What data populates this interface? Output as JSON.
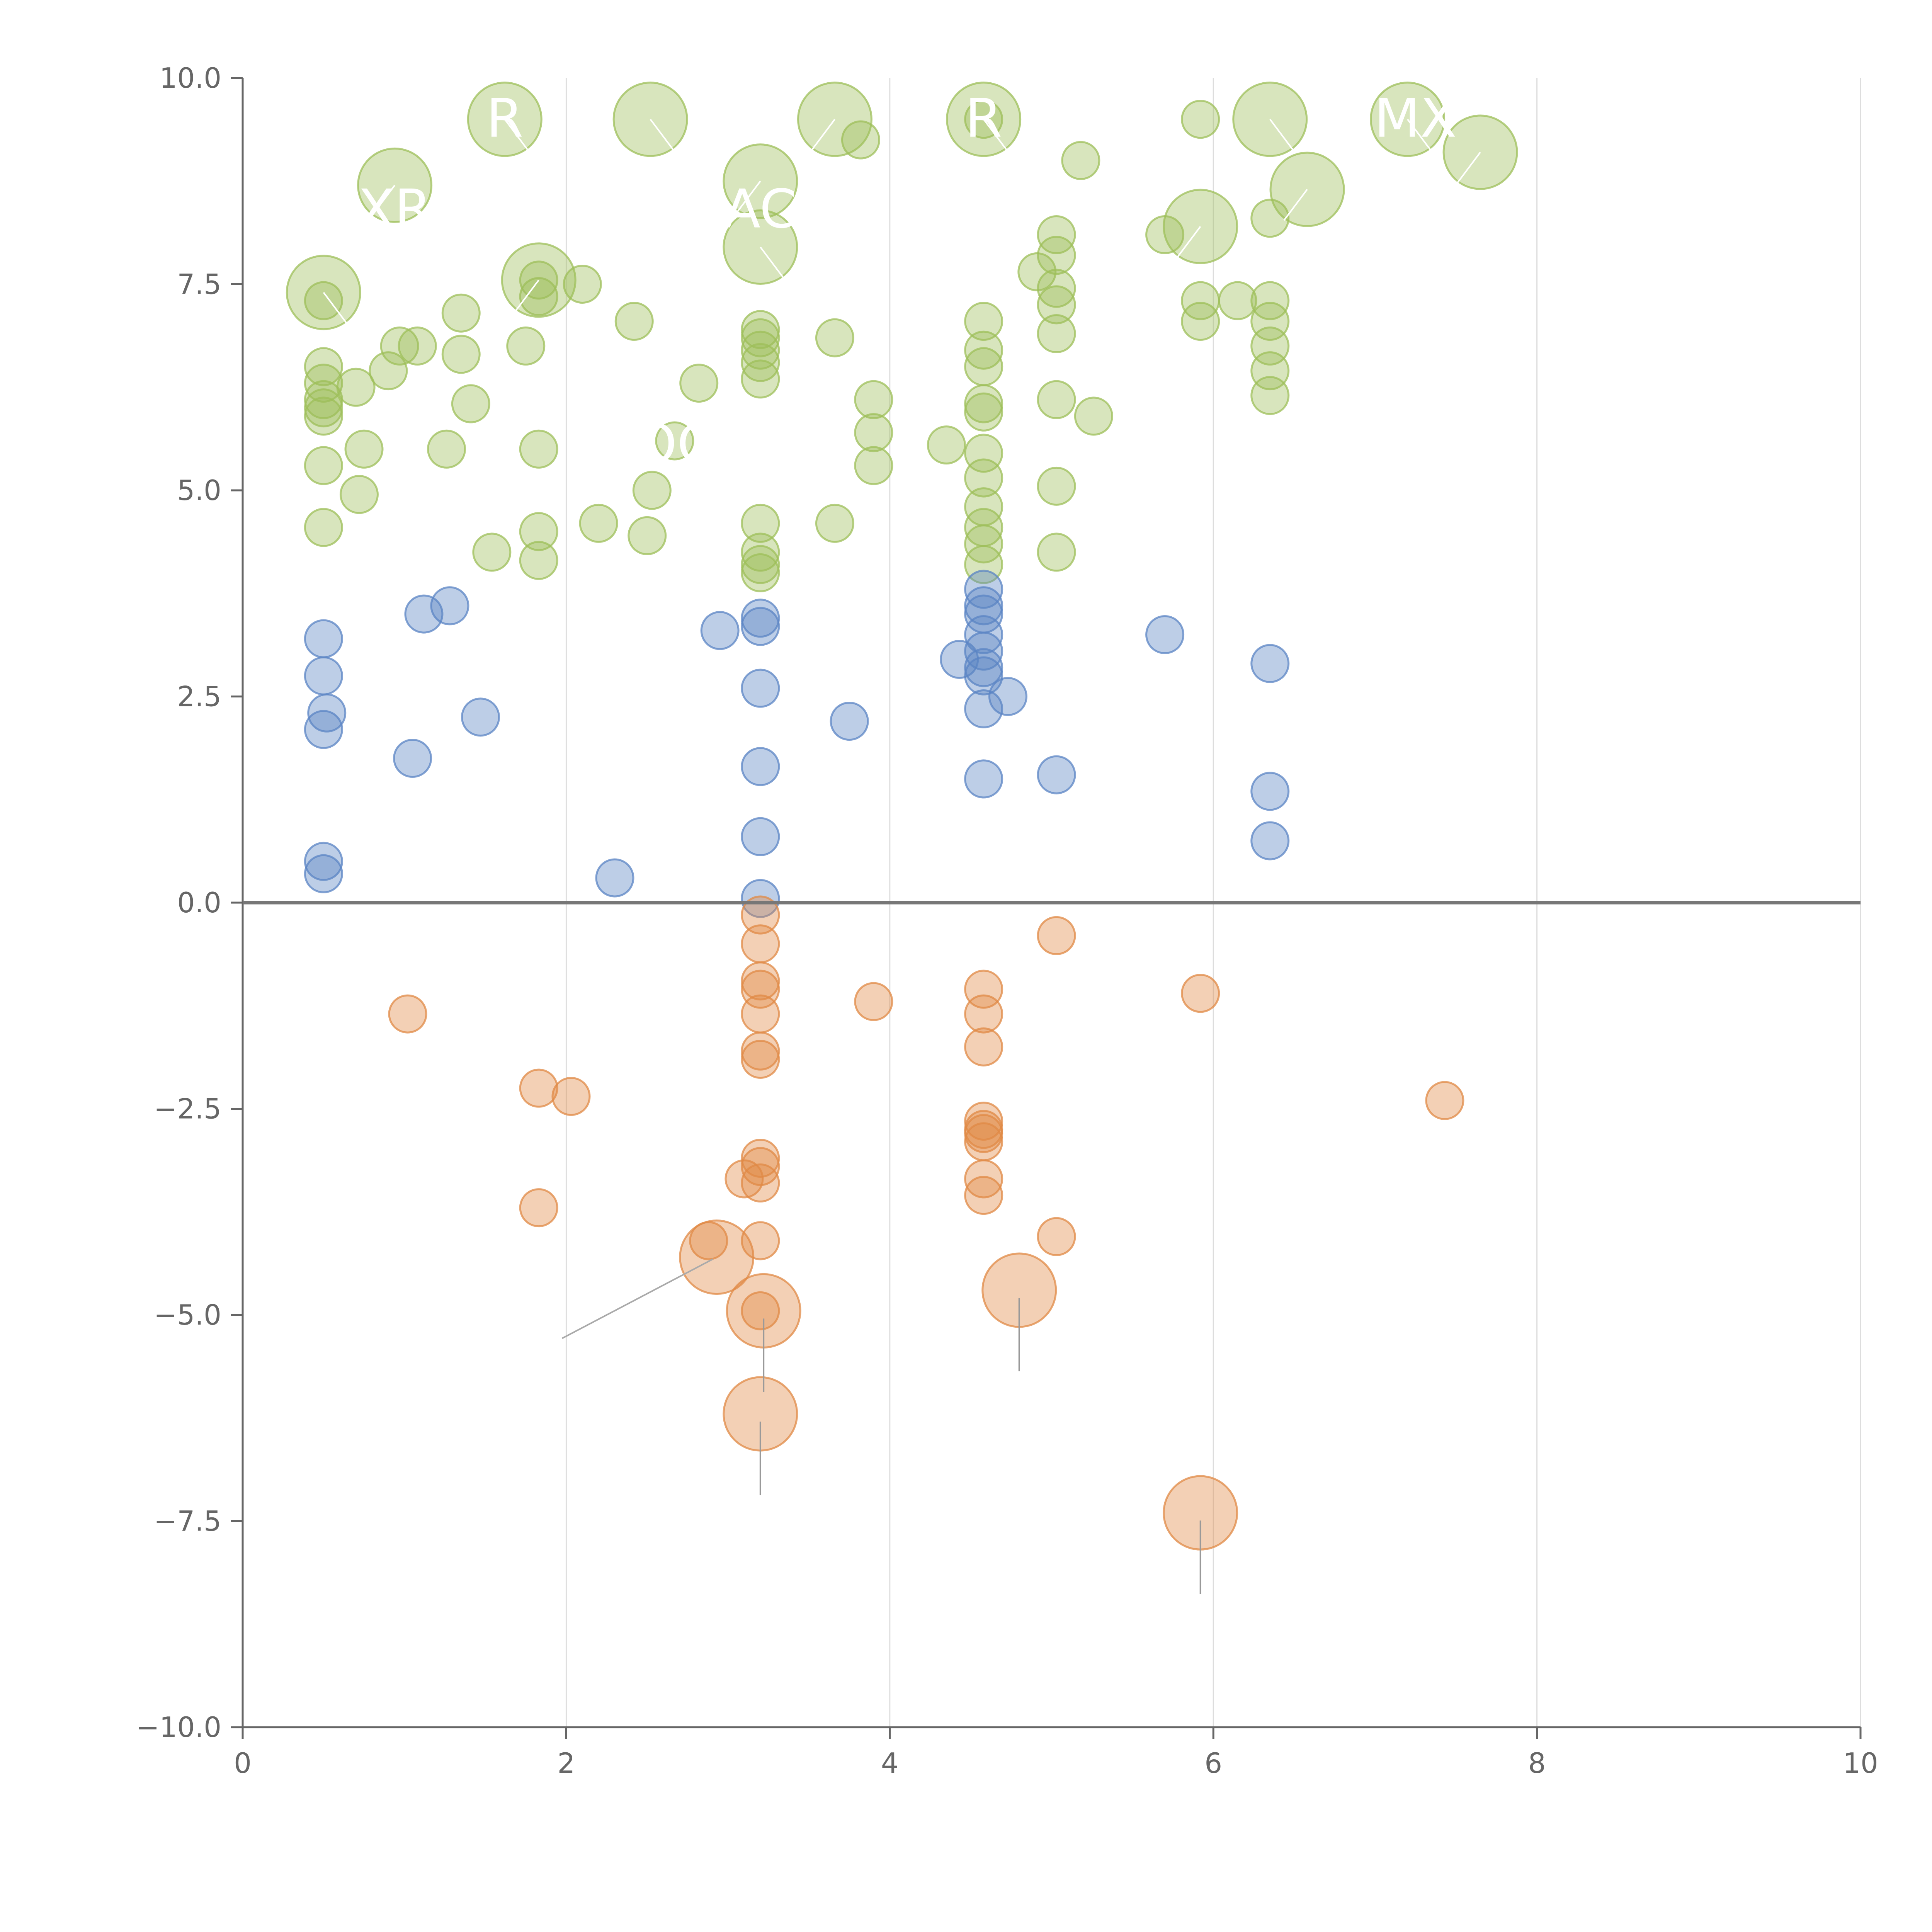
{
  "chart_data": {
    "type": "scatter",
    "title": "",
    "xlabel": "",
    "ylabel": "",
    "xlim": [
      0,
      10
    ],
    "ylim": [
      -10,
      10
    ],
    "x_ticks": [
      "0",
      "2",
      "4",
      "6",
      "8",
      "10"
    ],
    "y_ticks": [
      "10.0",
      "7.5",
      "5.0",
      "2.5",
      "0.0",
      "−2.5",
      "−5.0",
      "−7.5",
      "−10.0"
    ],
    "grid": "vertical",
    "legend": "none",
    "colors": {
      "green": "#9dbf5a",
      "blue": "#5b84c4",
      "orange": "#e08a45"
    },
    "series": [
      {
        "name": "green",
        "points": [
          [
            0.5,
            7.3
          ],
          [
            0.5,
            6.5
          ],
          [
            0.5,
            6.3
          ],
          [
            0.5,
            6.1
          ],
          [
            0.5,
            6.0
          ],
          [
            0.5,
            5.9
          ],
          [
            0.5,
            5.3
          ],
          [
            0.5,
            4.55
          ],
          [
            0.7,
            6.25
          ],
          [
            0.75,
            5.5
          ],
          [
            0.72,
            4.95
          ],
          [
            0.9,
            6.45
          ],
          [
            0.97,
            6.75
          ],
          [
            1.08,
            6.75
          ],
          [
            1.26,
            5.5
          ],
          [
            1.35,
            6.65
          ],
          [
            1.35,
            7.15
          ],
          [
            1.41,
            6.05
          ],
          [
            1.54,
            4.25
          ],
          [
            1.75,
            6.75
          ],
          [
            1.83,
            7.55
          ],
          [
            1.83,
            7.35
          ],
          [
            1.83,
            5.5
          ],
          [
            1.83,
            4.5
          ],
          [
            1.83,
            4.15
          ],
          [
            2.1,
            7.5
          ],
          [
            2.2,
            4.6
          ],
          [
            2.42,
            7.05
          ],
          [
            2.5,
            4.45
          ],
          [
            2.53,
            5.0
          ],
          [
            2.67,
            5.6
          ],
          [
            2.82,
            6.3
          ],
          [
            3.2,
            6.95
          ],
          [
            3.2,
            6.85
          ],
          [
            3.2,
            6.7
          ],
          [
            3.2,
            6.55
          ],
          [
            3.2,
            6.35
          ],
          [
            3.2,
            4.6
          ],
          [
            3.2,
            4.25
          ],
          [
            3.2,
            4.1
          ],
          [
            3.2,
            4.0
          ],
          [
            3.66,
            6.85
          ],
          [
            3.66,
            4.6
          ],
          [
            3.82,
            9.25
          ],
          [
            3.9,
            6.1
          ],
          [
            3.9,
            5.7
          ],
          [
            3.9,
            5.3
          ],
          [
            4.35,
            5.55
          ],
          [
            4.58,
            9.5
          ],
          [
            4.58,
            7.05
          ],
          [
            4.58,
            6.7
          ],
          [
            4.58,
            6.5
          ],
          [
            4.58,
            6.05
          ],
          [
            4.58,
            5.95
          ],
          [
            4.58,
            5.45
          ],
          [
            4.58,
            5.15
          ],
          [
            4.58,
            4.8
          ],
          [
            4.58,
            4.55
          ],
          [
            4.58,
            4.35
          ],
          [
            4.58,
            4.1
          ],
          [
            4.91,
            7.65
          ],
          [
            5.03,
            8.1
          ],
          [
            5.03,
            7.85
          ],
          [
            5.03,
            7.45
          ],
          [
            5.03,
            7.25
          ],
          [
            5.03,
            6.9
          ],
          [
            5.03,
            6.1
          ],
          [
            5.03,
            5.05
          ],
          [
            5.03,
            4.25
          ],
          [
            5.18,
            9.0
          ],
          [
            5.26,
            5.9
          ],
          [
            5.7,
            8.1
          ],
          [
            5.92,
            9.5
          ],
          [
            5.92,
            7.3
          ],
          [
            5.92,
            7.05
          ],
          [
            6.15,
            7.3
          ],
          [
            6.35,
            8.3
          ],
          [
            6.35,
            7.3
          ],
          [
            6.35,
            7.05
          ],
          [
            6.35,
            6.75
          ],
          [
            6.35,
            6.45
          ],
          [
            6.35,
            6.15
          ]
        ]
      },
      {
        "name": "blue",
        "points": [
          [
            0.5,
            3.2
          ],
          [
            0.5,
            2.75
          ],
          [
            0.52,
            2.3
          ],
          [
            0.5,
            2.1
          ],
          [
            0.5,
            0.5
          ],
          [
            0.5,
            0.35
          ],
          [
            1.05,
            1.75
          ],
          [
            1.12,
            3.5
          ],
          [
            1.28,
            3.6
          ],
          [
            1.47,
            2.25
          ],
          [
            2.3,
            0.3
          ],
          [
            2.95,
            3.3
          ],
          [
            3.2,
            3.45
          ],
          [
            3.2,
            3.35
          ],
          [
            3.2,
            2.6
          ],
          [
            3.2,
            1.65
          ],
          [
            3.2,
            0.8
          ],
          [
            3.2,
            0.05
          ],
          [
            3.75,
            2.2
          ],
          [
            4.43,
            2.95
          ],
          [
            4.58,
            3.8
          ],
          [
            4.58,
            3.6
          ],
          [
            4.58,
            3.5
          ],
          [
            4.58,
            3.25
          ],
          [
            4.58,
            3.05
          ],
          [
            4.58,
            2.85
          ],
          [
            4.58,
            2.75
          ],
          [
            4.58,
            2.35
          ],
          [
            4.73,
            2.5
          ],
          [
            4.58,
            1.5
          ],
          [
            5.03,
            1.55
          ],
          [
            5.7,
            3.25
          ],
          [
            6.35,
            2.9
          ],
          [
            6.35,
            1.35
          ],
          [
            6.35,
            0.75
          ]
        ]
      },
      {
        "name": "orange",
        "points": [
          [
            1.02,
            -1.35
          ],
          [
            1.83,
            -2.25
          ],
          [
            2.03,
            -2.35
          ],
          [
            1.83,
            -3.7
          ],
          [
            2.88,
            -4.1
          ],
          [
            3.1,
            -3.35
          ],
          [
            3.2,
            -0.15
          ],
          [
            3.2,
            -0.5
          ],
          [
            3.2,
            -0.95
          ],
          [
            3.2,
            -1.05
          ],
          [
            3.2,
            -1.35
          ],
          [
            3.2,
            -1.8
          ],
          [
            3.2,
            -1.9
          ],
          [
            3.2,
            -3.1
          ],
          [
            3.2,
            -3.2
          ],
          [
            3.2,
            -3.4
          ],
          [
            3.2,
            -4.1
          ],
          [
            3.2,
            -4.95
          ],
          [
            3.9,
            -1.2
          ],
          [
            4.58,
            -1.05
          ],
          [
            4.58,
            -1.35
          ],
          [
            4.58,
            -1.75
          ],
          [
            4.58,
            -2.65
          ],
          [
            4.58,
            -2.75
          ],
          [
            4.58,
            -2.8
          ],
          [
            4.58,
            -2.9
          ],
          [
            4.58,
            -3.35
          ],
          [
            4.58,
            -3.55
          ],
          [
            5.03,
            -0.4
          ],
          [
            5.03,
            -4.05
          ],
          [
            5.92,
            -1.1
          ],
          [
            7.43,
            -2.4
          ]
        ]
      },
      {
        "name": "green-large",
        "points": [
          [
            0.5,
            7.4
          ],
          [
            0.94,
            8.7
          ],
          [
            1.62,
            9.5
          ],
          [
            1.83,
            7.55
          ],
          [
            2.52,
            9.5
          ],
          [
            3.2,
            8.75
          ],
          [
            3.2,
            7.95
          ],
          [
            3.66,
            9.5
          ],
          [
            4.58,
            9.5
          ],
          [
            5.92,
            8.2
          ],
          [
            6.35,
            9.5
          ],
          [
            6.58,
            8.65
          ],
          [
            7.2,
            9.5
          ],
          [
            7.65,
            9.1
          ]
        ]
      },
      {
        "name": "orange-large",
        "points": [
          [
            2.93,
            -4.3
          ],
          [
            3.22,
            -4.95
          ],
          [
            4.8,
            -4.7
          ],
          [
            3.2,
            -6.2
          ],
          [
            5.92,
            -7.4
          ]
        ]
      }
    ],
    "annotations": [
      {
        "text": "R",
        "x": 1.62,
        "y": 9.5
      },
      {
        "text": "IMX",
        "x": 7.2,
        "y": 9.5
      },
      {
        "text": "R",
        "x": 4.58,
        "y": 9.5
      },
      {
        "text": "AC",
        "x": 3.2,
        "y": 8.4
      },
      {
        "text": "XR",
        "x": 0.94,
        "y": 8.4
      },
      {
        "text": "OC",
        "x": 2.67,
        "y": 5.55
      }
    ]
  }
}
